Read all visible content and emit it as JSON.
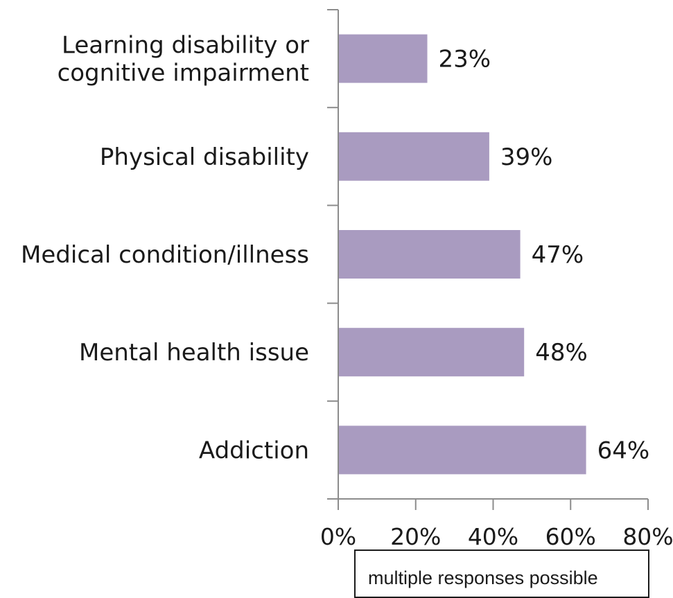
{
  "chart_data": {
    "type": "bar",
    "orientation": "horizontal",
    "categories": [
      "Learning disability or cognitive impairment",
      "Physical disability",
      "Medical condition/illness",
      "Mental health issue",
      "Addiction"
    ],
    "category_lines": [
      [
        "Learning disability or",
        "cognitive impairment"
      ],
      [
        "Physical disability"
      ],
      [
        "Medical condition/illness"
      ],
      [
        "Mental health issue"
      ],
      [
        "Addiction"
      ]
    ],
    "values": [
      23,
      39,
      47,
      48,
      64
    ],
    "value_labels": [
      "23%",
      "39%",
      "47%",
      "48%",
      "64%"
    ],
    "xlim": [
      0,
      80
    ],
    "xticks": [
      0,
      20,
      40,
      60,
      80
    ],
    "xtick_labels": [
      "0%",
      "20%",
      "40%",
      "60%",
      "80%"
    ],
    "bar_color": "#a99bc0",
    "grid": false,
    "legend": "none",
    "note": "multiple responses possible"
  }
}
